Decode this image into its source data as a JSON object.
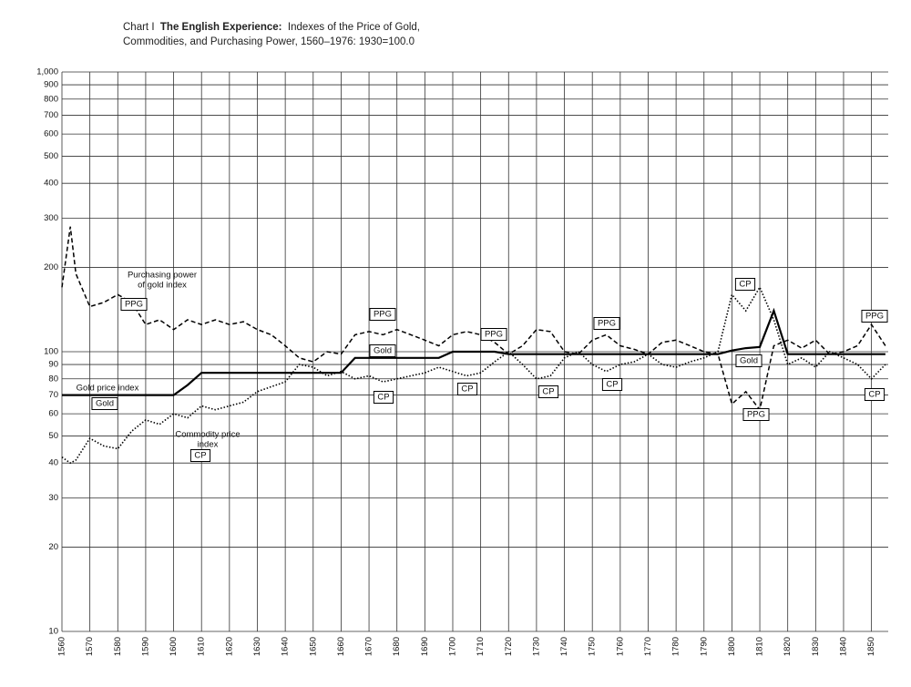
{
  "chart_data": {
    "type": "line",
    "title_prefix": "Chart I",
    "title_bold": "The English Experience:",
    "title": "Indexes of the Price of Gold, Commodities, and Purchasing Power, 1560–1976: 1930=100.0",
    "log_y": true,
    "grid": true,
    "xlim": [
      1560,
      1856
    ],
    "xticks": [
      1560,
      1570,
      1580,
      1590,
      1600,
      1610,
      1620,
      1630,
      1640,
      1650,
      1660,
      1670,
      1680,
      1690,
      1700,
      1710,
      1720,
      1730,
      1740,
      1750,
      1760,
      1770,
      1780,
      1790,
      1800,
      1810,
      1820,
      1830,
      1840,
      1850
    ],
    "ylim": [
      10,
      1000
    ],
    "yticks": [
      10,
      20,
      30,
      40,
      50,
      60,
      70,
      80,
      90,
      100,
      200,
      300,
      400,
      500,
      600,
      700,
      800,
      900,
      {
        "value": 1000,
        "label": "1,000"
      }
    ],
    "x": [
      1560,
      1563,
      1565,
      1570,
      1575,
      1580,
      1585,
      1590,
      1595,
      1600,
      1605,
      1610,
      1615,
      1620,
      1625,
      1630,
      1635,
      1640,
      1645,
      1650,
      1655,
      1660,
      1665,
      1670,
      1675,
      1680,
      1685,
      1690,
      1695,
      1700,
      1705,
      1710,
      1715,
      1720,
      1725,
      1730,
      1735,
      1740,
      1745,
      1750,
      1755,
      1760,
      1765,
      1770,
      1775,
      1780,
      1785,
      1790,
      1795,
      1800,
      1805,
      1810,
      1815,
      1820,
      1825,
      1830,
      1835,
      1840,
      1845,
      1850,
      1855
    ],
    "series": [
      {
        "name": "Gold",
        "color": "#000000",
        "style": "solid",
        "values": [
          70,
          70,
          70,
          70,
          70,
          70,
          70,
          70,
          70,
          70,
          76,
          84,
          84,
          84,
          84,
          84,
          84,
          84,
          84,
          84,
          84,
          84,
          95,
          95,
          95,
          95,
          95,
          95,
          95,
          100,
          100,
          100,
          100,
          98,
          98,
          98,
          98,
          98,
          98,
          98,
          98,
          98,
          98,
          98,
          98,
          98,
          98,
          98,
          98,
          101,
          103,
          104,
          140,
          98,
          98,
          98,
          98,
          98,
          98,
          98,
          98
        ]
      },
      {
        "name": "CP",
        "color": "#000000",
        "style": "dotted",
        "values": [
          42,
          40,
          41,
          49,
          46,
          45,
          52,
          57,
          55,
          60,
          58,
          64,
          62,
          64,
          66,
          72,
          75,
          78,
          90,
          88,
          82,
          85,
          80,
          82,
          78,
          80,
          82,
          84,
          88,
          85,
          82,
          84,
          92,
          100,
          90,
          80,
          82,
          95,
          100,
          90,
          85,
          90,
          92,
          98,
          90,
          88,
          92,
          95,
          100,
          160,
          140,
          170,
          130,
          90,
          95,
          88,
          100,
          95,
          90,
          80,
          90
        ]
      },
      {
        "name": "PPG",
        "color": "#000000",
        "style": "dashed",
        "values": [
          170,
          280,
          190,
          145,
          150,
          160,
          150,
          125,
          130,
          120,
          130,
          125,
          130,
          125,
          128,
          120,
          115,
          105,
          95,
          92,
          100,
          98,
          115,
          118,
          115,
          120,
          115,
          110,
          105,
          115,
          118,
          115,
          108,
          98,
          105,
          120,
          118,
          100,
          98,
          110,
          115,
          105,
          102,
          98,
          108,
          110,
          105,
          100,
          98,
          65,
          72,
          62,
          105,
          110,
          103,
          110,
          98,
          100,
          105,
          125,
          105
        ]
      }
    ],
    "annotations": [
      [
        "Purchasing power",
        "of gold index"
      ],
      [
        "Gold price index"
      ],
      [
        "Commodity price",
        "index"
      ]
    ]
  }
}
